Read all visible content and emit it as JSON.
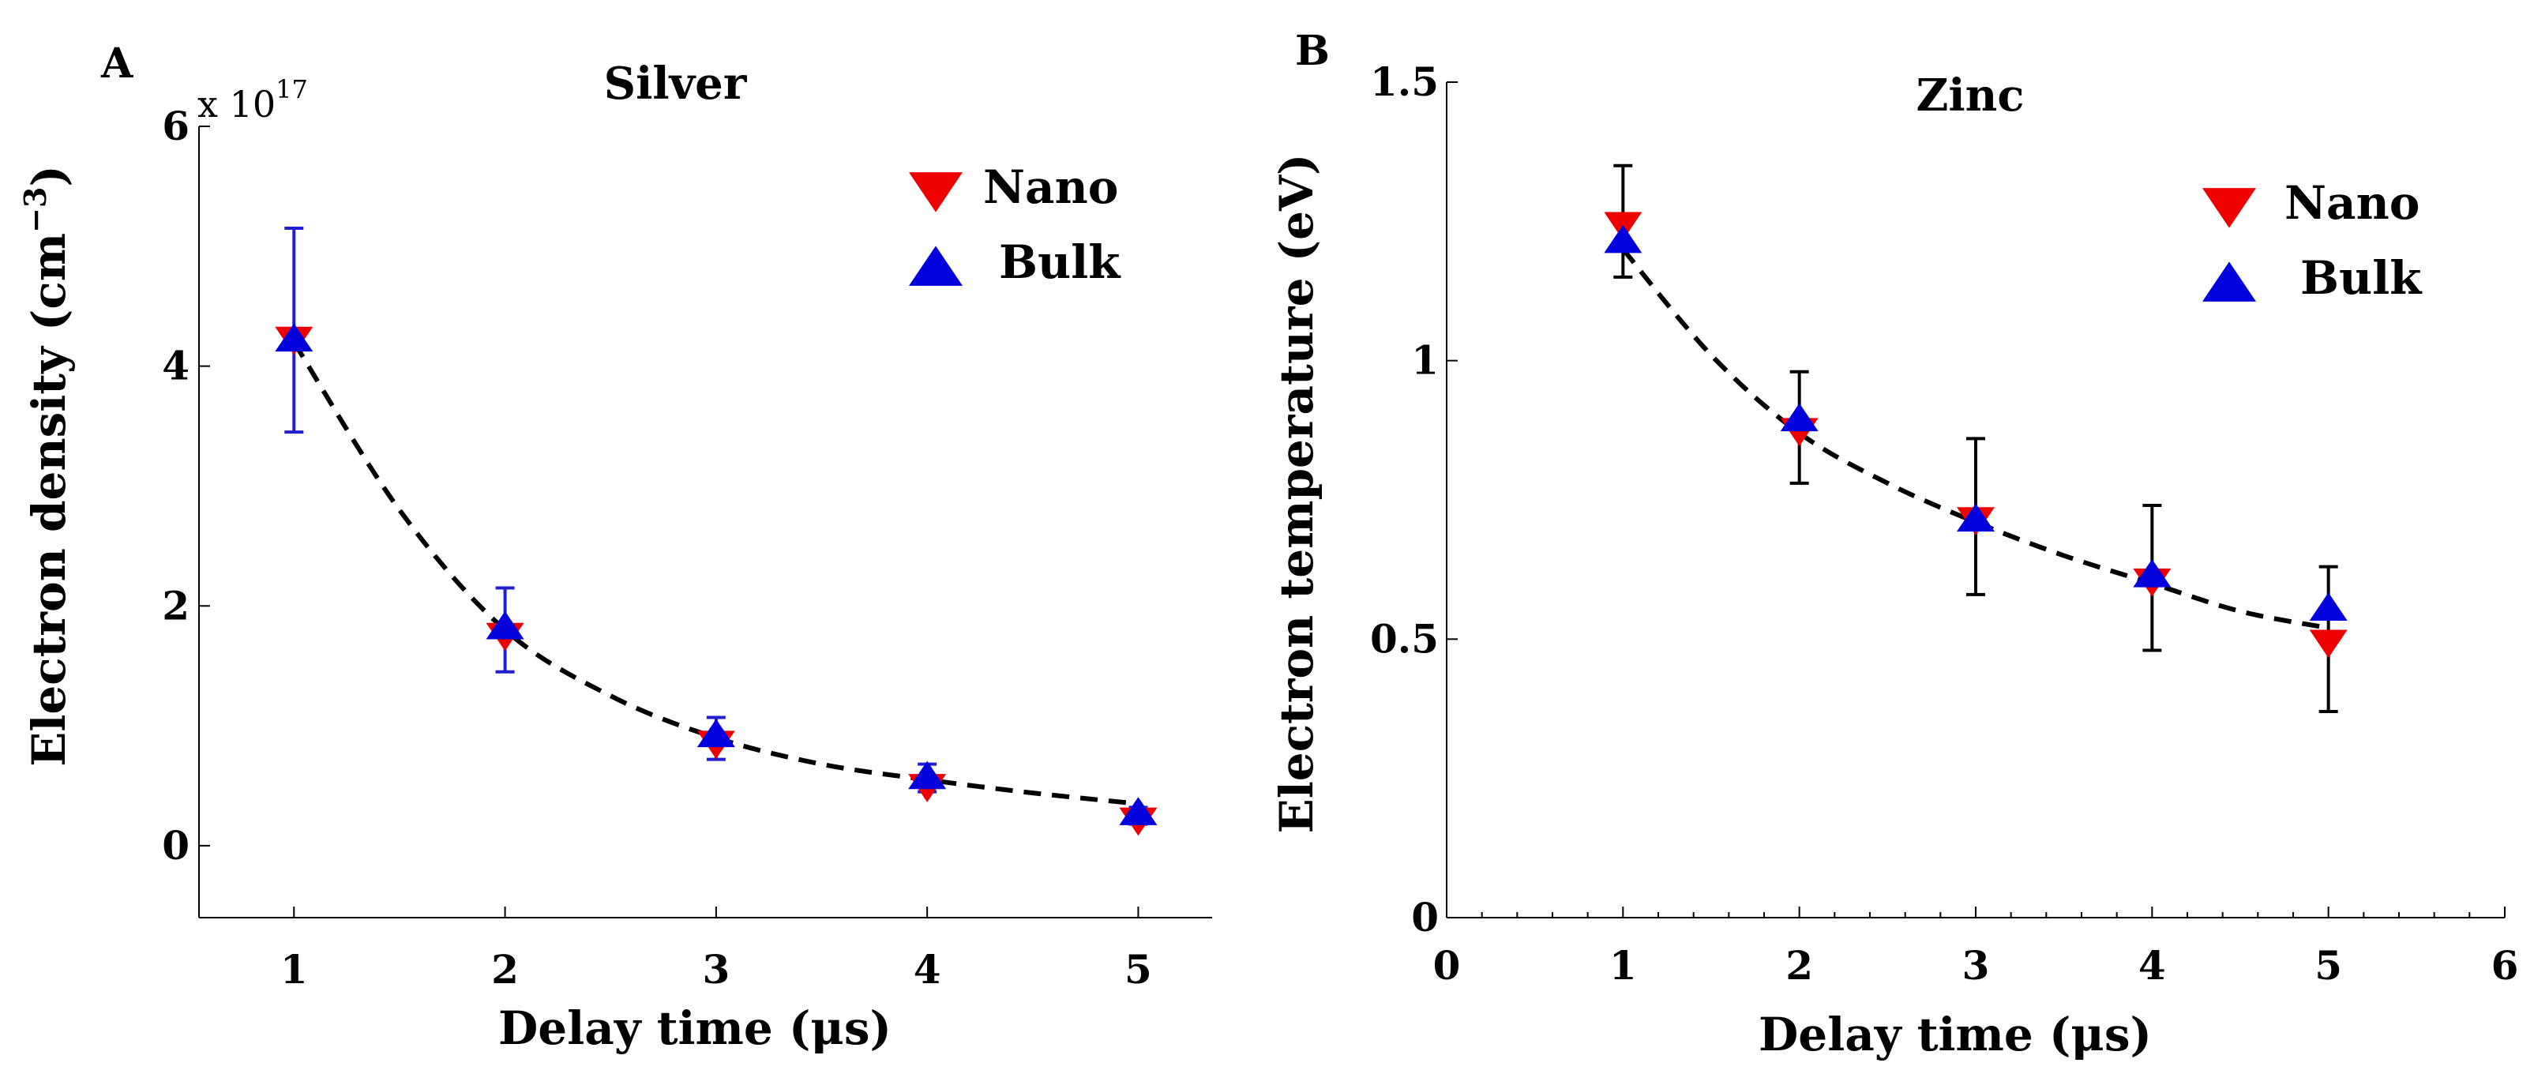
{
  "chart_data": [
    {
      "type": "scatter",
      "panel_label": "A",
      "title": "Silver",
      "xlabel": "Delay time (μs)",
      "ylabel_main": "Electron density (cm",
      "ylabel_sup": "−3",
      "ylabel_close": ")",
      "multiplier_base": "x 10",
      "multiplier_exp": "17",
      "xlim": [
        0.55,
        5.35
      ],
      "ylim": [
        -0.6,
        6.0
      ],
      "xticks": [
        1,
        2,
        3,
        4,
        5
      ],
      "xtick_labels": [
        "1",
        "2",
        "3",
        "4",
        "5"
      ],
      "yticks": [
        0,
        2,
        4,
        6
      ],
      "ytick_labels": [
        "0",
        "2",
        "4",
        "6"
      ],
      "error_bar_color": "#1f1fd0",
      "legend_position": "top-right",
      "series": [
        {
          "name": "Nano",
          "marker": "triangle-down",
          "color": "#ee0000",
          "x": [
            1,
            2,
            3,
            4,
            5
          ],
          "y": [
            4.25,
            1.78,
            0.88,
            0.52,
            0.24
          ]
        },
        {
          "name": "Bulk",
          "marker": "triangle-up",
          "color": "#0000dd",
          "x": [
            1,
            2,
            3,
            4,
            5
          ],
          "y": [
            4.2,
            1.8,
            0.9,
            0.55,
            0.25
          ],
          "err_low": [
            3.45,
            1.45,
            0.72,
            0.45,
            0.18
          ],
          "err_high": [
            5.15,
            2.15,
            1.07,
            0.68,
            0.32
          ]
        }
      ],
      "fit": {
        "x": [
          1,
          1.5,
          2,
          2.5,
          3,
          3.5,
          4,
          4.5,
          5
        ],
        "y": [
          4.2,
          2.8,
          1.8,
          1.25,
          0.9,
          0.68,
          0.55,
          0.44,
          0.35
        ]
      }
    },
    {
      "type": "scatter",
      "panel_label": "B",
      "title": "Zinc",
      "xlabel": "Delay time (μs)",
      "ylabel_main": "Electron temperature (eV)",
      "xlim": [
        0,
        6
      ],
      "ylim": [
        0,
        1.5
      ],
      "xticks": [
        0,
        1,
        2,
        3,
        4,
        5,
        6
      ],
      "xtick_labels": [
        "0",
        "1",
        "2",
        "3",
        "4",
        "5",
        "6"
      ],
      "yticks": [
        0,
        0.5,
        1,
        1.5
      ],
      "ytick_labels": [
        "0",
        "0.5",
        "1",
        "1.5"
      ],
      "error_bar_color": "#000000",
      "legend_position": "top-right",
      "series": [
        {
          "name": "Nano",
          "marker": "triangle-down",
          "color": "#ee0000",
          "x": [
            1,
            2,
            3,
            4,
            5
          ],
          "y": [
            1.25,
            0.88,
            0.72,
            0.61,
            0.5
          ],
          "err_low": [
            1.15,
            0.78,
            0.58,
            0.48,
            0.37
          ],
          "err_high": [
            1.35,
            0.98,
            0.86,
            0.74,
            0.63
          ]
        },
        {
          "name": "Bulk",
          "marker": "triangle-up",
          "color": "#0000dd",
          "x": [
            1,
            2,
            3,
            4,
            5
          ],
          "y": [
            1.21,
            0.89,
            0.71,
            0.61,
            0.55
          ]
        }
      ],
      "fit": {
        "x": [
          1,
          1.5,
          2,
          2.5,
          3,
          3.5,
          4,
          4.5,
          5
        ],
        "y": [
          1.2,
          1.01,
          0.87,
          0.78,
          0.71,
          0.65,
          0.6,
          0.55,
          0.52
        ]
      }
    }
  ]
}
